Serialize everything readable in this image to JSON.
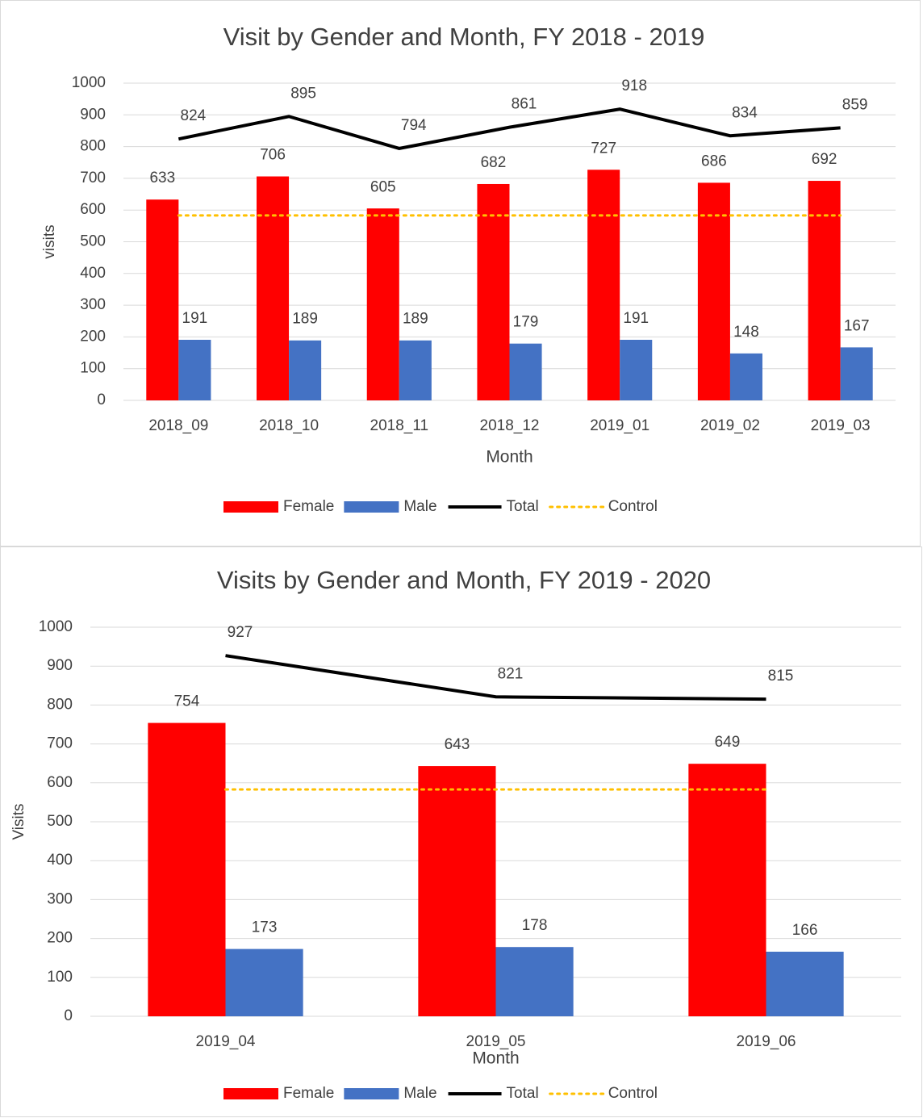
{
  "chart_data": [
    {
      "type": "bar",
      "title": "Visit by Gender and Month, FY 2018 - 2019",
      "x_label": "Month",
      "y_label": "visits",
      "categories": [
        "2018_09",
        "2018_10",
        "2018_11",
        "2018_12",
        "2019_01",
        "2019_02",
        "2019_03"
      ],
      "series": [
        {
          "name": "Female",
          "type": "bar",
          "color": "#ff0000",
          "values": [
            633,
            706,
            605,
            682,
            727,
            686,
            692
          ]
        },
        {
          "name": "Male",
          "type": "bar",
          "color": "#4472c4",
          "values": [
            191,
            189,
            189,
            179,
            191,
            148,
            167
          ]
        },
        {
          "name": "Total",
          "type": "line",
          "color": "#000000",
          "values": [
            824,
            895,
            794,
            861,
            918,
            834,
            859
          ]
        },
        {
          "name": "Control",
          "type": "line",
          "dotted": true,
          "color": "#ffc000",
          "values": [
            583,
            583,
            583,
            583,
            583,
            583,
            583
          ]
        }
      ],
      "ylim": [
        0,
        1000
      ],
      "yticks": [
        0,
        100,
        200,
        300,
        400,
        500,
        600,
        700,
        800,
        900,
        1000
      ],
      "grid": true,
      "legend": "bottom"
    },
    {
      "type": "bar",
      "title": "Visits by Gender and Month, FY 2019 - 2020",
      "x_label": "Month",
      "y_label": "Visits",
      "categories": [
        "2019_04",
        "2019_05",
        "2019_06"
      ],
      "series": [
        {
          "name": "Female",
          "type": "bar",
          "color": "#ff0000",
          "values": [
            754,
            643,
            649
          ]
        },
        {
          "name": "Male",
          "type": "bar",
          "color": "#4472c4",
          "values": [
            173,
            178,
            166
          ]
        },
        {
          "name": "Total",
          "type": "line",
          "color": "#000000",
          "values": [
            927,
            821,
            815
          ]
        },
        {
          "name": "Control",
          "type": "line",
          "dotted": true,
          "color": "#ffc000",
          "values": [
            583,
            583,
            583
          ]
        }
      ],
      "ylim": [
        0,
        1000
      ],
      "yticks": [
        0,
        100,
        200,
        300,
        400,
        500,
        600,
        700,
        800,
        900,
        1000
      ],
      "grid": true,
      "legend": "bottom"
    }
  ]
}
